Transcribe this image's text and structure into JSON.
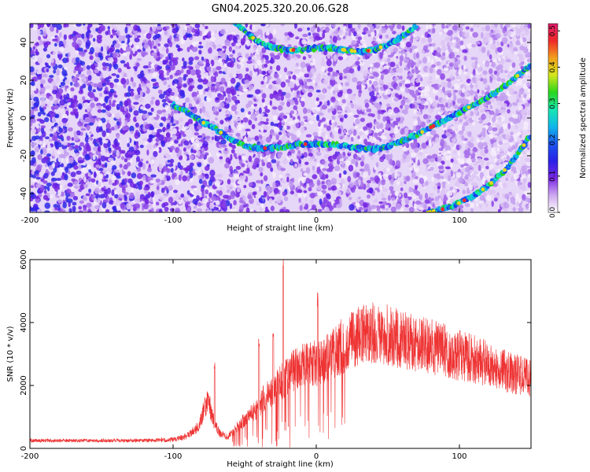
{
  "title": "GN04.2025.320.20.06.G28",
  "chart_data": [
    {
      "type": "heatmap",
      "xlabel": "Height of straight line (km)",
      "ylabel": "Frequency (Hz)",
      "xlim": [
        -200,
        150
      ],
      "ylim": [
        -50,
        50
      ],
      "xticks": [
        -200,
        -100,
        0,
        100
      ],
      "yticks": [
        -40,
        -20,
        0,
        20,
        40
      ],
      "colorbar": {
        "label": "Normalized spectral amplitude",
        "range": [
          0,
          0.52
        ],
        "ticks": [
          0.0,
          0.1,
          0.2,
          0.3,
          0.4,
          0.5
        ],
        "colors": [
          "#ffffff",
          "#cda8ef",
          "#7a28e6",
          "#2a22e6",
          "#1a55ee",
          "#10b8ea",
          "#18e6b0",
          "#2bd61c",
          "#d4e61c",
          "#f2a01c",
          "#ee2a2a",
          "#e11d6e"
        ]
      },
      "ridges": [
        {
          "x": [
            -100,
            -90,
            -80,
            -70,
            -60,
            -50,
            -40,
            -30,
            -20,
            -10,
            0,
            10,
            20,
            30,
            40,
            50,
            60,
            70,
            80,
            90,
            100,
            110,
            120,
            130,
            140,
            150
          ],
          "y": [
            7,
            3,
            -2,
            -6,
            -11,
            -15,
            -16,
            -16,
            -15,
            -14,
            -13.5,
            -14,
            -15,
            -16,
            -16.5,
            -15,
            -12,
            -9,
            -5,
            -1,
            3,
            7,
            11,
            16,
            22,
            28
          ]
        },
        {
          "x": [
            -60,
            -50,
            -40,
            -30,
            -20,
            -10,
            0,
            10,
            20,
            30,
            40,
            50,
            60,
            70
          ],
          "y": [
            53,
            46,
            40,
            37,
            36,
            36,
            37,
            37,
            36,
            35,
            36,
            39,
            43,
            49
          ]
        },
        {
          "x": [
            78,
            90,
            100,
            110,
            120,
            130,
            140,
            150
          ],
          "y": [
            -50,
            -48,
            -45,
            -41,
            -36,
            -29,
            -20,
            -9
          ]
        }
      ]
    },
    {
      "type": "line",
      "xlabel": "Height of straight line (km)",
      "ylabel": "SNR (10 * v/v)",
      "xlim": [
        -200,
        150
      ],
      "ylim": [
        0,
        6000
      ],
      "xticks": [
        -200,
        -100,
        0,
        100
      ],
      "yticks": [
        0,
        2000,
        4000,
        6000
      ],
      "color": "#ee3333",
      "envelope": {
        "x": [
          -200,
          -150,
          -120,
          -100,
          -90,
          -82,
          -78,
          -75,
          -72,
          -68,
          -62,
          -55,
          -48,
          -42,
          -38,
          -35,
          -30,
          -25,
          -20,
          -15,
          -10,
          -5,
          0,
          5,
          10,
          20,
          30,
          40,
          50,
          60,
          70,
          80,
          90,
          100,
          110,
          120,
          130,
          140,
          150
        ],
        "y": [
          250,
          250,
          250,
          280,
          400,
          700,
          1300,
          1500,
          900,
          500,
          350,
          700,
          1000,
          1200,
          1500,
          1700,
          1800,
          2100,
          2300,
          2500,
          2600,
          2700,
          2700,
          2800,
          3000,
          3300,
          3550,
          3650,
          3600,
          3450,
          3350,
          3250,
          3100,
          2950,
          2850,
          2700,
          2500,
          2350,
          2250
        ]
      },
      "spikes": [
        {
          "x": -71,
          "y": 2800
        },
        {
          "x": -40,
          "y": 3500
        },
        {
          "x": -30,
          "y": 3700
        },
        {
          "x": -23,
          "y": 6100
        },
        {
          "x": 1,
          "y": 5000
        }
      ]
    }
  ]
}
